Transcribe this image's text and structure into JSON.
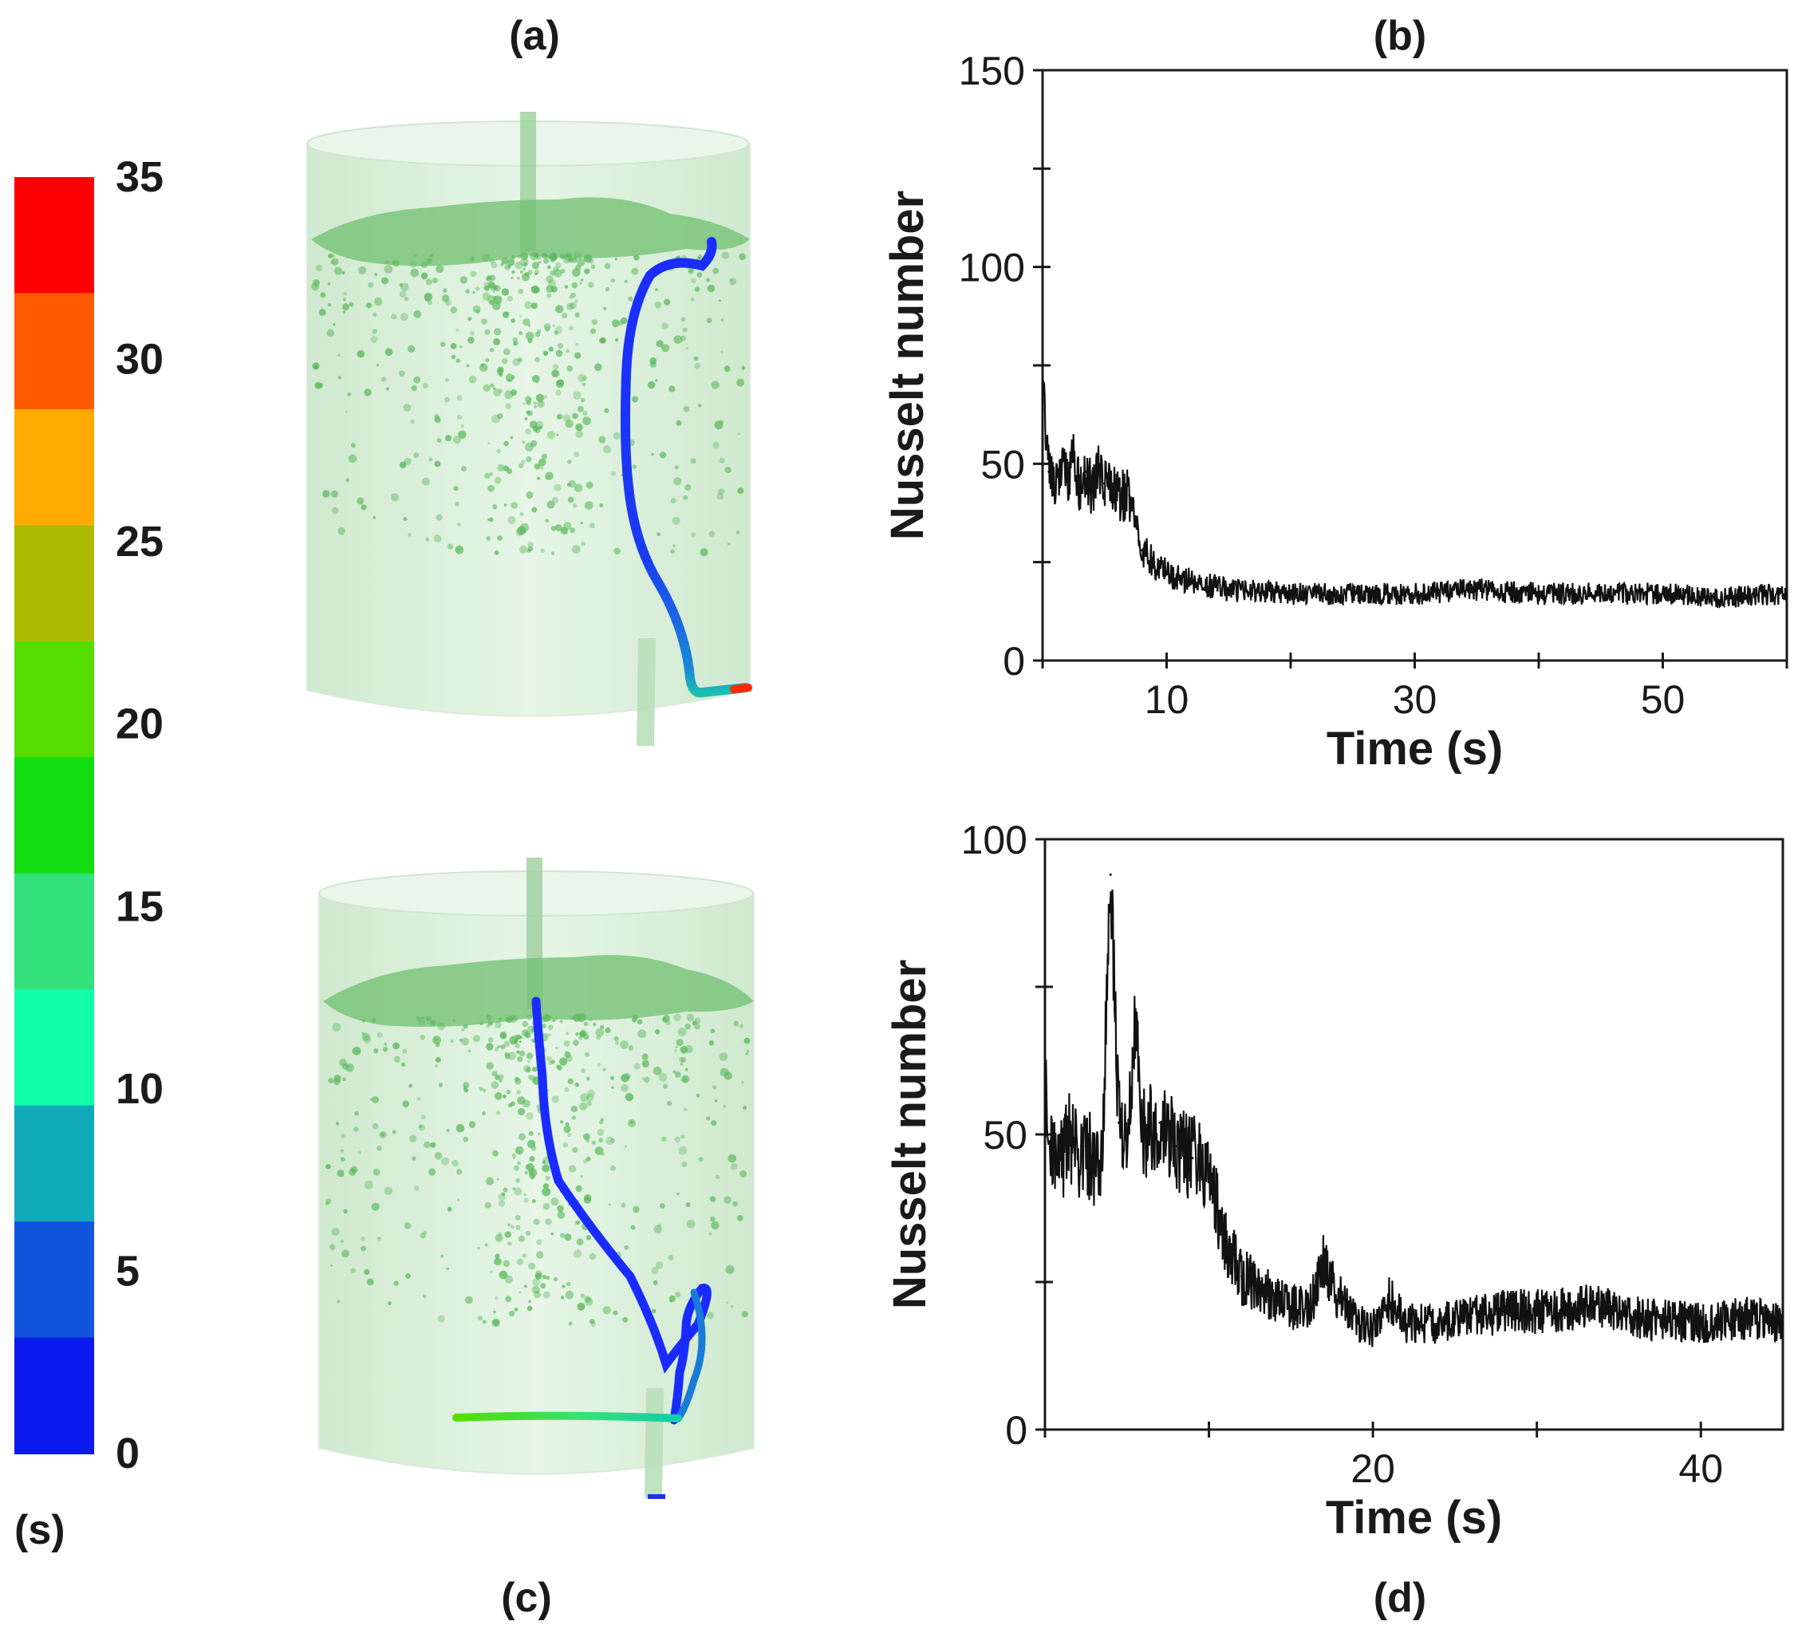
{
  "panels": {
    "a": "(a)",
    "b": "(b)",
    "c": "(c)",
    "d": "(d)"
  },
  "colorbar": {
    "unit": "(s)",
    "ticks": [
      "35",
      "30",
      "25",
      "20",
      "15",
      "10",
      "5",
      "0"
    ],
    "colors": [
      "#ff0000",
      "#ff5a00",
      "#ffaa00",
      "#aabb00",
      "#55dd00",
      "#11dd11",
      "#33e07a",
      "#11ffaa",
      "#11aabb",
      "#1155dd",
      "#0a1aee"
    ],
    "range": [
      0,
      35
    ]
  },
  "chart_data": [
    {
      "id": "b",
      "type": "line",
      "title": "(b)",
      "xlabel": "Time (s)",
      "ylabel": "Nusselt number",
      "xlim": [
        0,
        60
      ],
      "ylim": [
        0,
        150
      ],
      "xticks": [
        10,
        30,
        50
      ],
      "yticks": [
        0,
        50,
        100,
        150
      ],
      "series": [
        {
          "name": "Nusselt number",
          "x": [
            0,
            0.5,
            1,
            1.5,
            2,
            2.5,
            3,
            3.5,
            4,
            4.5,
            5,
            5.5,
            6,
            7,
            8,
            9,
            10,
            12,
            15,
            20,
            25,
            30,
            35,
            40,
            45,
            50,
            55,
            60
          ],
          "y": [
            70,
            48,
            42,
            50,
            46,
            52,
            44,
            48,
            43,
            50,
            45,
            46,
            42,
            42,
            28,
            25,
            22,
            20,
            18,
            17,
            17,
            17,
            18,
            17,
            17,
            17,
            16,
            17
          ]
        }
      ]
    },
    {
      "id": "d",
      "type": "line",
      "title": "(d)",
      "xlabel": "Time (s)",
      "ylabel": "Nusselt number",
      "xlim": [
        0,
        45
      ],
      "ylim": [
        0,
        100
      ],
      "xticks": [
        20,
        40
      ],
      "yticks": [
        0,
        50,
        100
      ],
      "series": [
        {
          "name": "Nusselt number",
          "x": [
            0,
            0.3,
            0.8,
            1.5,
            2,
            2.5,
            3,
            3.5,
            4,
            4.5,
            5,
            5.5,
            6,
            7,
            8,
            9,
            10,
            11,
            12,
            14,
            16,
            17,
            18,
            19,
            20,
            21,
            22,
            24,
            26,
            28,
            30,
            33,
            36,
            40,
            43,
            45
          ],
          "y": [
            58,
            48,
            44,
            50,
            46,
            48,
            44,
            47,
            94,
            52,
            48,
            68,
            50,
            52,
            48,
            46,
            45,
            32,
            26,
            22,
            20,
            28,
            22,
            18,
            17,
            22,
            18,
            18,
            19,
            20,
            20,
            21,
            19,
            18,
            19,
            18
          ]
        }
      ]
    }
  ]
}
